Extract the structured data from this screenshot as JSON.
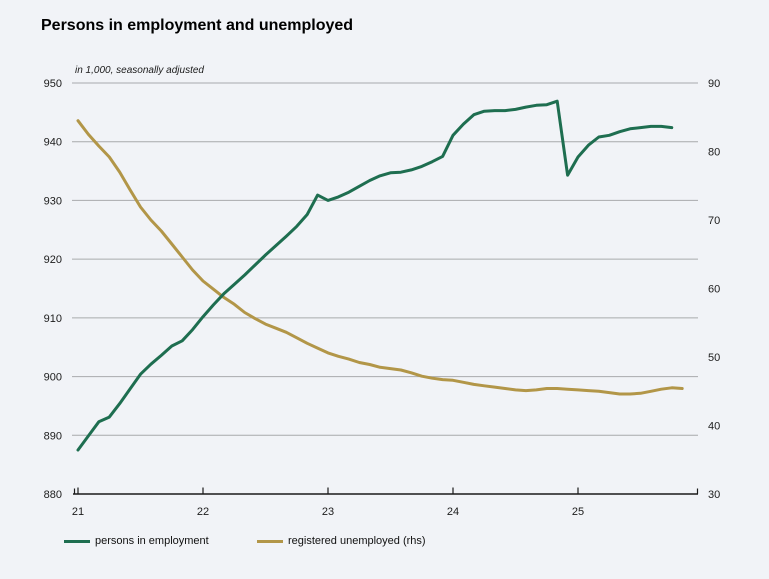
{
  "header": {
    "title": "Persons in employment and unemployed",
    "subtitle": "in 1,000, seasonally adjusted"
  },
  "chart_data": {
    "type": "line",
    "title": "Persons in employment and unemployed",
    "subtitle": "in 1,000, seasonally adjusted",
    "frequency": "monthly",
    "x_start": "2021-01",
    "x_tick_labels": [
      "21",
      "22",
      "23",
      "24",
      "25"
    ],
    "grid": true,
    "legend_position": "bottom",
    "left_axis": {
      "min": 880,
      "max": 950,
      "ticks": [
        950,
        940,
        930,
        920,
        910,
        900,
        890,
        880
      ]
    },
    "right_axis": {
      "min": 30,
      "max": 90,
      "ticks": [
        90,
        80,
        70,
        60,
        50,
        40,
        30
      ]
    },
    "colors": {
      "grid": "#a8aaac",
      "axis": "#1a1a1a",
      "text": "#1c1c1c"
    },
    "series": [
      {
        "name": "registered unemployed (rhs)",
        "axis": "right",
        "color": "#b29648",
        "values": [
          84.5,
          82.5,
          80.8,
          79.2,
          77.0,
          74.4,
          71.9,
          70.0,
          68.4,
          66.5,
          64.6,
          62.7,
          61.1,
          59.9,
          58.7,
          57.7,
          56.5,
          55.6,
          54.8,
          54.2,
          53.6,
          52.8,
          52.0,
          51.3,
          50.6,
          50.1,
          49.7,
          49.2,
          48.9,
          48.5,
          48.3,
          48.1,
          47.7,
          47.2,
          46.9,
          46.7,
          46.6,
          46.3,
          46.0,
          45.8,
          45.6,
          45.4,
          45.2,
          45.1,
          45.2,
          45.4,
          45.4,
          45.3,
          45.2,
          45.1,
          45.0,
          44.8,
          44.6,
          44.6,
          44.7,
          45.0,
          45.3,
          45.5,
          45.4
        ]
      },
      {
        "name": "persons in employment",
        "axis": "left",
        "color": "#1e6e50",
        "values": [
          887.5,
          889.9,
          892.3,
          893.1,
          895.4,
          897.9,
          900.4,
          902.1,
          903.6,
          905.2,
          906.1,
          908.0,
          910.2,
          912.2,
          914.1,
          915.7,
          917.3,
          919.0,
          920.7,
          922.3,
          923.9,
          925.6,
          927.6,
          930.9,
          930.0,
          930.6,
          931.4,
          932.4,
          933.4,
          934.2,
          934.7,
          934.8,
          935.2,
          935.8,
          936.6,
          937.5,
          941.1,
          943.0,
          944.6,
          945.2,
          945.3,
          945.3,
          945.5,
          945.9,
          946.2,
          946.3,
          946.9,
          934.3,
          937.4,
          939.4,
          940.8,
          941.1,
          941.7,
          942.2,
          942.4,
          942.6,
          942.6,
          942.4
        ]
      }
    ]
  },
  "legend": {
    "items": [
      {
        "label": "persons in employment"
      },
      {
        "label": "registered unemployed (rhs)"
      }
    ]
  }
}
